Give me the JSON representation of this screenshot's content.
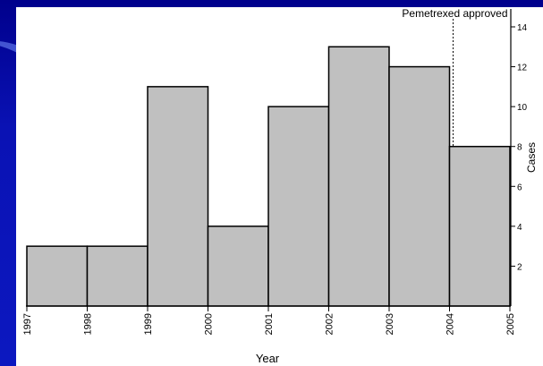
{
  "colors": {
    "bar_fill": "#c0c0c0",
    "bar_stroke": "#000000",
    "panel_bg": "#ffffff",
    "slide_bg": "#0a12b4"
  },
  "chart_data": {
    "type": "bar",
    "histogram": true,
    "bin_edges": [
      "1997",
      "1998",
      "1999",
      "2000",
      "2001",
      "2002",
      "2003",
      "2004",
      "2005"
    ],
    "values": [
      3,
      3,
      11,
      4,
      10,
      13,
      12,
      8
    ],
    "title": "",
    "xlabel": "Year",
    "ylabel": "Cases",
    "ylim": [
      0,
      14
    ],
    "y_ticks": [
      2,
      4,
      6,
      8,
      10,
      12,
      14
    ],
    "y_axis_side": "right",
    "grid": false,
    "annotations": [
      {
        "text": "Pemetrexed approved",
        "x": "2004"
      }
    ]
  }
}
